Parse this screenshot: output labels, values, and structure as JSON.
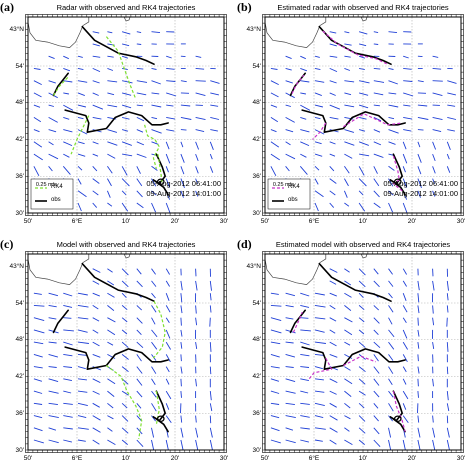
{
  "colors": {
    "vectors": "#1f3fd6",
    "obs": "#000000",
    "rk4_green": "#7ee030",
    "rk4_magenta": "#c832c8",
    "grid": "#b0b0b0"
  },
  "scale_label": "0.25 m/s",
  "legend": {
    "rk4": "RK4",
    "obs": "obs"
  },
  "dates": {
    "start": "05-Aug-2012 06:41:00",
    "end": "09-Aug-2012 14:01:00"
  },
  "y_ticks": [
    {
      "label": "43°N",
      "min": 0
    },
    {
      "label": "54'",
      "min": 54
    },
    {
      "label": "48'",
      "min": 48
    },
    {
      "label": "42'",
      "min": 42
    },
    {
      "label": "36'",
      "min": 36
    },
    {
      "label": "30'",
      "min": 30
    }
  ],
  "x_ticks": [
    {
      "label": "50'",
      "min": 50
    },
    {
      "label": "6°E",
      "min": 0
    },
    {
      "label": "10'",
      "min": 10
    },
    {
      "label": "20'",
      "min": 20
    },
    {
      "label": "30'",
      "min": 30
    }
  ],
  "chart_data": [
    {
      "type": "scatter",
      "panel": "(a)",
      "title": "Radar with observed and RK4 trajectories",
      "field": "radar",
      "rk4_color": "green",
      "show_legend": true,
      "show_dates": true,
      "obs_tracks": [
        [
          [
            6.018,
            43.007
          ],
          [
            6.06,
            42.97
          ],
          [
            6.14,
            42.935
          ],
          [
            6.2,
            42.925
          ],
          [
            6.235,
            42.915
          ],
          [
            6.262,
            42.905
          ]
        ],
        [
          [
            5.92,
            42.82
          ],
          [
            5.935,
            42.845
          ],
          [
            5.955,
            42.865
          ],
          [
            5.97,
            42.88
          ]
        ],
        [
          [
            5.96,
            42.78
          ],
          [
            6.03,
            42.765
          ],
          [
            6.04,
            42.745
          ],
          [
            6.035,
            42.72
          ],
          [
            6.1,
            42.73
          ],
          [
            6.13,
            42.76
          ],
          [
            6.175,
            42.775
          ],
          [
            6.22,
            42.765
          ],
          [
            6.255,
            42.74
          ],
          [
            6.285,
            42.74
          ],
          [
            6.31,
            42.745
          ]
        ],
        [
          [
            6.27,
            42.66
          ],
          [
            6.29,
            42.625
          ],
          [
            6.3,
            42.6
          ],
          [
            6.28,
            42.58
          ],
          [
            6.26,
            42.59
          ],
          [
            6.295,
            42.57
          ],
          [
            6.31,
            42.55
          ]
        ]
      ],
      "rk4_tracks": [
        [
          [
            6.1,
            42.98
          ],
          [
            6.14,
            42.94
          ],
          [
            6.16,
            42.895
          ],
          [
            6.18,
            42.85
          ],
          [
            6.2,
            42.81
          ]
        ],
        [
          [
            5.92,
            42.82
          ],
          [
            5.94,
            42.845
          ],
          [
            5.97,
            42.87
          ]
        ],
        [
          [
            6.04,
            42.765
          ],
          [
            6.0,
            42.7
          ],
          [
            5.98,
            42.66
          ]
        ],
        [
          [
            6.23,
            42.74
          ],
          [
            6.24,
            42.71
          ],
          [
            6.265,
            42.7
          ],
          [
            6.28,
            42.68
          ],
          [
            6.26,
            42.65
          ],
          [
            6.27,
            42.62
          ]
        ],
        [
          [
            6.275,
            42.66
          ],
          [
            6.285,
            42.61
          ],
          [
            6.29,
            42.58
          ]
        ]
      ]
    },
    {
      "type": "scatter",
      "panel": "(b)",
      "title": "Estimated radar with observed and RK4 trajectories",
      "field": "radar",
      "rk4_color": "magenta",
      "show_legend": true,
      "show_dates": true,
      "obs_tracks": [
        [
          [
            6.018,
            43.007
          ],
          [
            6.06,
            42.97
          ],
          [
            6.14,
            42.935
          ],
          [
            6.2,
            42.925
          ],
          [
            6.235,
            42.915
          ],
          [
            6.262,
            42.905
          ]
        ],
        [
          [
            5.92,
            42.82
          ],
          [
            5.935,
            42.845
          ],
          [
            5.955,
            42.865
          ],
          [
            5.97,
            42.88
          ]
        ],
        [
          [
            5.96,
            42.78
          ],
          [
            6.03,
            42.765
          ],
          [
            6.04,
            42.745
          ],
          [
            6.035,
            42.72
          ],
          [
            6.1,
            42.73
          ],
          [
            6.13,
            42.76
          ],
          [
            6.175,
            42.775
          ],
          [
            6.22,
            42.765
          ],
          [
            6.255,
            42.74
          ],
          [
            6.285,
            42.74
          ],
          [
            6.31,
            42.745
          ]
        ],
        [
          [
            6.27,
            42.66
          ],
          [
            6.29,
            42.625
          ],
          [
            6.3,
            42.6
          ],
          [
            6.28,
            42.58
          ],
          [
            6.26,
            42.59
          ],
          [
            6.295,
            42.57
          ],
          [
            6.31,
            42.55
          ]
        ]
      ],
      "rk4_tracks": [
        [
          [
            6.03,
            42.995
          ],
          [
            6.08,
            42.96
          ],
          [
            6.15,
            42.93
          ],
          [
            6.21,
            42.92
          ],
          [
            6.25,
            42.905
          ]
        ],
        [
          [
            5.925,
            42.825
          ],
          [
            5.94,
            42.85
          ],
          [
            5.965,
            42.875
          ]
        ],
        [
          [
            6.04,
            42.745
          ],
          [
            6.02,
            42.72
          ],
          [
            5.995,
            42.7
          ]
        ],
        [
          [
            6.1,
            42.735
          ],
          [
            6.17,
            42.77
          ],
          [
            6.25,
            42.74
          ],
          [
            6.3,
            42.745
          ]
        ],
        [
          [
            6.27,
            42.655
          ],
          [
            6.285,
            42.615
          ],
          [
            6.29,
            42.59
          ],
          [
            6.27,
            42.58
          ],
          [
            6.3,
            42.56
          ]
        ]
      ]
    },
    {
      "type": "scatter",
      "panel": "(c)",
      "title": "Model with observed and RK4 trajectories",
      "field": "model",
      "rk4_color": "green",
      "show_legend": false,
      "show_dates": false,
      "obs_tracks": [
        [
          [
            6.018,
            43.007
          ],
          [
            6.06,
            42.97
          ],
          [
            6.14,
            42.935
          ],
          [
            6.2,
            42.925
          ],
          [
            6.235,
            42.915
          ],
          [
            6.262,
            42.905
          ]
        ],
        [
          [
            5.92,
            42.82
          ],
          [
            5.935,
            42.845
          ],
          [
            5.955,
            42.865
          ],
          [
            5.97,
            42.88
          ]
        ],
        [
          [
            5.96,
            42.78
          ],
          [
            6.03,
            42.765
          ],
          [
            6.04,
            42.745
          ],
          [
            6.035,
            42.72
          ],
          [
            6.1,
            42.73
          ],
          [
            6.13,
            42.76
          ],
          [
            6.175,
            42.775
          ],
          [
            6.22,
            42.765
          ],
          [
            6.255,
            42.74
          ],
          [
            6.285,
            42.74
          ],
          [
            6.31,
            42.745
          ]
        ],
        [
          [
            6.27,
            42.66
          ],
          [
            6.29,
            42.625
          ],
          [
            6.3,
            42.6
          ],
          [
            6.28,
            42.58
          ],
          [
            6.26,
            42.59
          ],
          [
            6.295,
            42.57
          ],
          [
            6.31,
            42.55
          ]
        ]
      ],
      "rk4_tracks": [
        [
          [
            6.262,
            42.905
          ],
          [
            6.285,
            42.87
          ],
          [
            6.3,
            42.82
          ],
          [
            6.29,
            42.78
          ],
          [
            6.26,
            42.75
          ]
        ],
        [
          [
            6.1,
            42.73
          ],
          [
            6.15,
            42.7
          ],
          [
            6.17,
            42.66
          ],
          [
            6.2,
            42.62
          ],
          [
            6.22,
            42.58
          ],
          [
            6.21,
            42.53
          ]
        ],
        [
          [
            6.27,
            42.66
          ],
          [
            6.28,
            42.61
          ],
          [
            6.27,
            42.57
          ]
        ]
      ]
    },
    {
      "type": "scatter",
      "panel": "(d)",
      "title": "Estimated model with observed and RK4 trajectories",
      "field": "model",
      "rk4_color": "magenta",
      "show_legend": false,
      "show_dates": false,
      "obs_tracks": [
        [
          [
            6.018,
            43.007
          ],
          [
            6.06,
            42.97
          ],
          [
            6.14,
            42.935
          ],
          [
            6.2,
            42.925
          ],
          [
            6.235,
            42.915
          ],
          [
            6.262,
            42.905
          ]
        ],
        [
          [
            5.92,
            42.82
          ],
          [
            5.935,
            42.845
          ],
          [
            5.955,
            42.865
          ],
          [
            5.97,
            42.88
          ]
        ],
        [
          [
            5.96,
            42.78
          ],
          [
            6.03,
            42.765
          ],
          [
            6.04,
            42.745
          ],
          [
            6.035,
            42.72
          ],
          [
            6.1,
            42.73
          ],
          [
            6.13,
            42.76
          ],
          [
            6.175,
            42.775
          ],
          [
            6.22,
            42.765
          ],
          [
            6.255,
            42.74
          ],
          [
            6.285,
            42.74
          ],
          [
            6.31,
            42.745
          ]
        ],
        [
          [
            6.27,
            42.66
          ],
          [
            6.29,
            42.625
          ],
          [
            6.3,
            42.6
          ],
          [
            6.28,
            42.58
          ],
          [
            6.26,
            42.59
          ],
          [
            6.295,
            42.57
          ],
          [
            6.31,
            42.55
          ]
        ]
      ],
      "rk4_tracks": [
        [
          [
            5.93,
            42.82
          ],
          [
            5.95,
            42.855
          ],
          [
            5.96,
            42.875
          ]
        ],
        [
          [
            6.04,
            42.75
          ],
          [
            6.06,
            42.72
          ],
          [
            6.0,
            42.71
          ],
          [
            5.98,
            42.69
          ]
        ],
        [
          [
            6.1,
            42.73
          ],
          [
            6.16,
            42.755
          ],
          [
            6.21,
            42.74
          ]
        ],
        [
          [
            6.27,
            42.66
          ],
          [
            6.28,
            42.62
          ],
          [
            6.3,
            42.58
          ],
          [
            6.31,
            42.55
          ]
        ]
      ]
    }
  ]
}
